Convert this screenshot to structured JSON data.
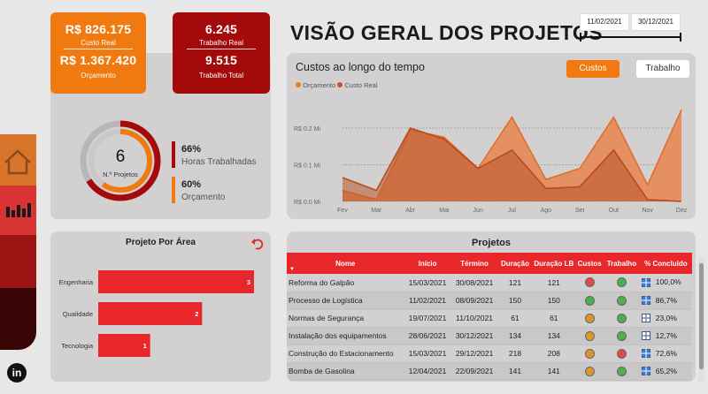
{
  "colors": {
    "orange": "#f07a10",
    "dark_red": "#a50a0a",
    "red": "#e8272a",
    "real_line": "#c0552a"
  },
  "kpi": {
    "custo_real_value": "R$ 826.175",
    "custo_real_label": "Custo Real",
    "orcamento_value": "R$ 1.367.420",
    "orcamento_label": "Orçamento",
    "trabalho_real_value": "6.245",
    "trabalho_real_label": "Trabalho Real",
    "trabalho_total_value": "9.515",
    "trabalho_total_label": "Trabalho Total"
  },
  "projects_count": {
    "value": "6",
    "label": "N.º Projetos"
  },
  "progress": {
    "horas_pct": "66%",
    "horas_label": "Horas Trabalhadas",
    "horas_fraction": 0.66,
    "orcamento_pct": "60%",
    "orcamento_label": "Orçamento",
    "orcamento_fraction": 0.6
  },
  "header": {
    "title": "VISÃO GERAL DOS PROJETOS",
    "date_start": "11/02/2021",
    "date_end": "30/12/2021"
  },
  "chart_data": [
    {
      "type": "area",
      "title": "Custos ao longo do tempo",
      "legend": [
        "Orçamento",
        "Custo Real"
      ],
      "legend_position": "top-left",
      "categories": [
        "Fev",
        "Mar",
        "Abr",
        "Mai",
        "Jun",
        "Jul",
        "Ago",
        "Set",
        "Out",
        "Nov",
        "Dez"
      ],
      "series": [
        {
          "name": "Orçamento",
          "values": [
            0.03,
            0.005,
            0.195,
            0.175,
            0.09,
            0.23,
            0.06,
            0.09,
            0.23,
            0.045,
            0.25
          ]
        },
        {
          "name": "Custo Real",
          "values": [
            0.065,
            0.03,
            0.2,
            0.17,
            0.09,
            0.14,
            0.035,
            0.04,
            0.14,
            0.005,
            0.0
          ]
        }
      ],
      "y_ticks": [
        "R$ 0.0 Mi",
        "R$ 0.1 Mi",
        "R$ 0.2 Mi"
      ],
      "ylim": [
        0,
        0.27
      ],
      "grid": true
    },
    {
      "type": "bar",
      "title": "Projeto Por Área",
      "orientation": "horizontal",
      "categories": [
        "Engenharia",
        "Qualidade",
        "Tecnologia"
      ],
      "values": [
        3,
        2,
        1
      ]
    }
  ],
  "chart_buttons": {
    "custos": "Custos",
    "trabalho": "Trabalho"
  },
  "table": {
    "title": "Projetos",
    "columns": [
      "Nome",
      "Início",
      "Término",
      "Duração",
      "Duração LB",
      "Custos",
      "Trabalho",
      "% Concluído"
    ],
    "rows": [
      {
        "nome": "Reforma do Galpão",
        "inicio": "15/03/2021",
        "termino": "30/08/2021",
        "duracao": "121",
        "duracao_lb": "121",
        "custos": "red",
        "trabalho": "green",
        "concluido": "100,0%"
      },
      {
        "nome": "Processo de Logística",
        "inicio": "11/02/2021",
        "termino": "08/09/2021",
        "duracao": "150",
        "duracao_lb": "150",
        "custos": "green",
        "trabalho": "green",
        "concluido": "86,7%"
      },
      {
        "nome": "Normas de Segurança",
        "inicio": "19/07/2021",
        "termino": "11/10/2021",
        "duracao": "61",
        "duracao_lb": "61",
        "custos": "orange",
        "trabalho": "green",
        "concluido": "23,0%"
      },
      {
        "nome": "Instalação dos equipamentos",
        "inicio": "28/06/2021",
        "termino": "30/12/2021",
        "duracao": "134",
        "duracao_lb": "134",
        "custos": "orange",
        "trabalho": "green",
        "concluido": "12,7%"
      },
      {
        "nome": "Construção do Estacionamento",
        "inicio": "15/03/2021",
        "termino": "29/12/2021",
        "duracao": "218",
        "duracao_lb": "208",
        "custos": "orange",
        "trabalho": "red",
        "concluido": "72,6%"
      },
      {
        "nome": "Bomba de Gasolina",
        "inicio": "12/04/2021",
        "termino": "22/09/2021",
        "duracao": "141",
        "duracao_lb": "141",
        "custos": "orange",
        "trabalho": "green",
        "concluido": "65,2%"
      }
    ]
  },
  "sidebar": {
    "icons": [
      "home-icon",
      "bar-chart-icon",
      "linkedin-icon"
    ],
    "linkedin_text": "in"
  }
}
